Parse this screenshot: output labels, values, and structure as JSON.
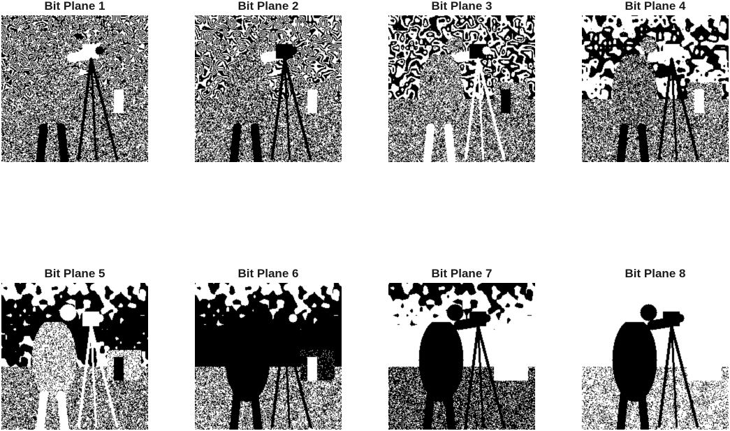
{
  "figure": {
    "panels": [
      {
        "title": "Bit Plane 1"
      },
      {
        "title": "Bit Plane 2"
      },
      {
        "title": "Bit Plane 3"
      },
      {
        "title": "Bit Plane 4"
      },
      {
        "title": "Bit Plane 5"
      },
      {
        "title": "Bit Plane 6"
      },
      {
        "title": "Bit Plane 7"
      },
      {
        "title": "Bit Plane 8"
      }
    ]
  }
}
